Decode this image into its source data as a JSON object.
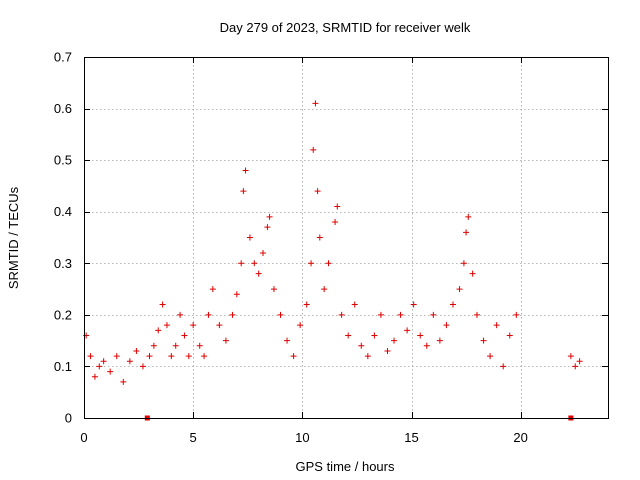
{
  "chart_data": {
    "type": "scatter",
    "title": "Day 279 of 2023, SRMTID for receiver welk",
    "xlabel": "GPS time / hours",
    "ylabel": "SRMTID / TECUs",
    "xlim": [
      0,
      24
    ],
    "ylim": [
      0,
      0.7
    ],
    "x_ticks": [
      0,
      5,
      10,
      15,
      20
    ],
    "y_ticks": [
      0,
      0.1,
      0.2,
      0.3,
      0.4,
      0.5,
      0.6,
      0.7
    ],
    "x_tick_labels": [
      "0",
      "5",
      "10",
      "15",
      "20"
    ],
    "y_tick_labels": [
      "0",
      "0.1",
      "0.2",
      "0.3",
      "0.4",
      "0.5",
      "0.6",
      "0.7"
    ],
    "grid": true,
    "marker": "+",
    "marker_color": "#e00000",
    "series": [
      {
        "name": "SRMTID",
        "points": [
          [
            0.1,
            0.16
          ],
          [
            0.3,
            0.12
          ],
          [
            0.5,
            0.08
          ],
          [
            0.7,
            0.1
          ],
          [
            0.9,
            0.11
          ],
          [
            1.2,
            0.09
          ],
          [
            1.5,
            0.12
          ],
          [
            1.8,
            0.07
          ],
          [
            2.1,
            0.11
          ],
          [
            2.4,
            0.13
          ],
          [
            2.7,
            0.1
          ],
          [
            3.0,
            0.12
          ],
          [
            3.2,
            0.14
          ],
          [
            3.4,
            0.17
          ],
          [
            3.6,
            0.22
          ],
          [
            3.8,
            0.18
          ],
          [
            4.0,
            0.12
          ],
          [
            4.2,
            0.14
          ],
          [
            4.4,
            0.2
          ],
          [
            4.6,
            0.16
          ],
          [
            4.8,
            0.12
          ],
          [
            5.0,
            0.18
          ],
          [
            5.3,
            0.14
          ],
          [
            5.5,
            0.12
          ],
          [
            5.7,
            0.2
          ],
          [
            5.9,
            0.25
          ],
          [
            6.2,
            0.18
          ],
          [
            6.5,
            0.15
          ],
          [
            6.8,
            0.2
          ],
          [
            7.0,
            0.24
          ],
          [
            7.2,
            0.3
          ],
          [
            7.3,
            0.44
          ],
          [
            7.4,
            0.48
          ],
          [
            7.6,
            0.35
          ],
          [
            7.8,
            0.3
          ],
          [
            8.0,
            0.28
          ],
          [
            8.2,
            0.32
          ],
          [
            8.4,
            0.37
          ],
          [
            8.5,
            0.39
          ],
          [
            8.7,
            0.25
          ],
          [
            9.0,
            0.2
          ],
          [
            9.3,
            0.15
          ],
          [
            9.6,
            0.12
          ],
          [
            9.9,
            0.18
          ],
          [
            10.2,
            0.22
          ],
          [
            10.4,
            0.3
          ],
          [
            10.5,
            0.52
          ],
          [
            10.6,
            0.61
          ],
          [
            10.7,
            0.44
          ],
          [
            10.8,
            0.35
          ],
          [
            11.0,
            0.25
          ],
          [
            11.2,
            0.3
          ],
          [
            11.5,
            0.38
          ],
          [
            11.6,
            0.41
          ],
          [
            11.8,
            0.2
          ],
          [
            12.1,
            0.16
          ],
          [
            12.4,
            0.22
          ],
          [
            12.7,
            0.14
          ],
          [
            13.0,
            0.12
          ],
          [
            13.3,
            0.16
          ],
          [
            13.6,
            0.2
          ],
          [
            13.9,
            0.13
          ],
          [
            14.2,
            0.15
          ],
          [
            14.5,
            0.2
          ],
          [
            14.8,
            0.17
          ],
          [
            15.1,
            0.22
          ],
          [
            15.4,
            0.16
          ],
          [
            15.7,
            0.14
          ],
          [
            16.0,
            0.2
          ],
          [
            16.3,
            0.15
          ],
          [
            16.6,
            0.18
          ],
          [
            16.9,
            0.22
          ],
          [
            17.2,
            0.25
          ],
          [
            17.4,
            0.3
          ],
          [
            17.5,
            0.36
          ],
          [
            17.6,
            0.39
          ],
          [
            17.8,
            0.28
          ],
          [
            18.0,
            0.2
          ],
          [
            18.3,
            0.15
          ],
          [
            18.6,
            0.12
          ],
          [
            18.9,
            0.18
          ],
          [
            19.2,
            0.1
          ],
          [
            19.5,
            0.16
          ],
          [
            19.8,
            0.2
          ],
          [
            22.3,
            0.12
          ],
          [
            22.5,
            0.1
          ],
          [
            22.7,
            0.11
          ]
        ]
      }
    ],
    "baseline_markers": [
      {
        "x": 2.9,
        "y": 0
      },
      {
        "x": 22.3,
        "y": 0
      }
    ]
  }
}
